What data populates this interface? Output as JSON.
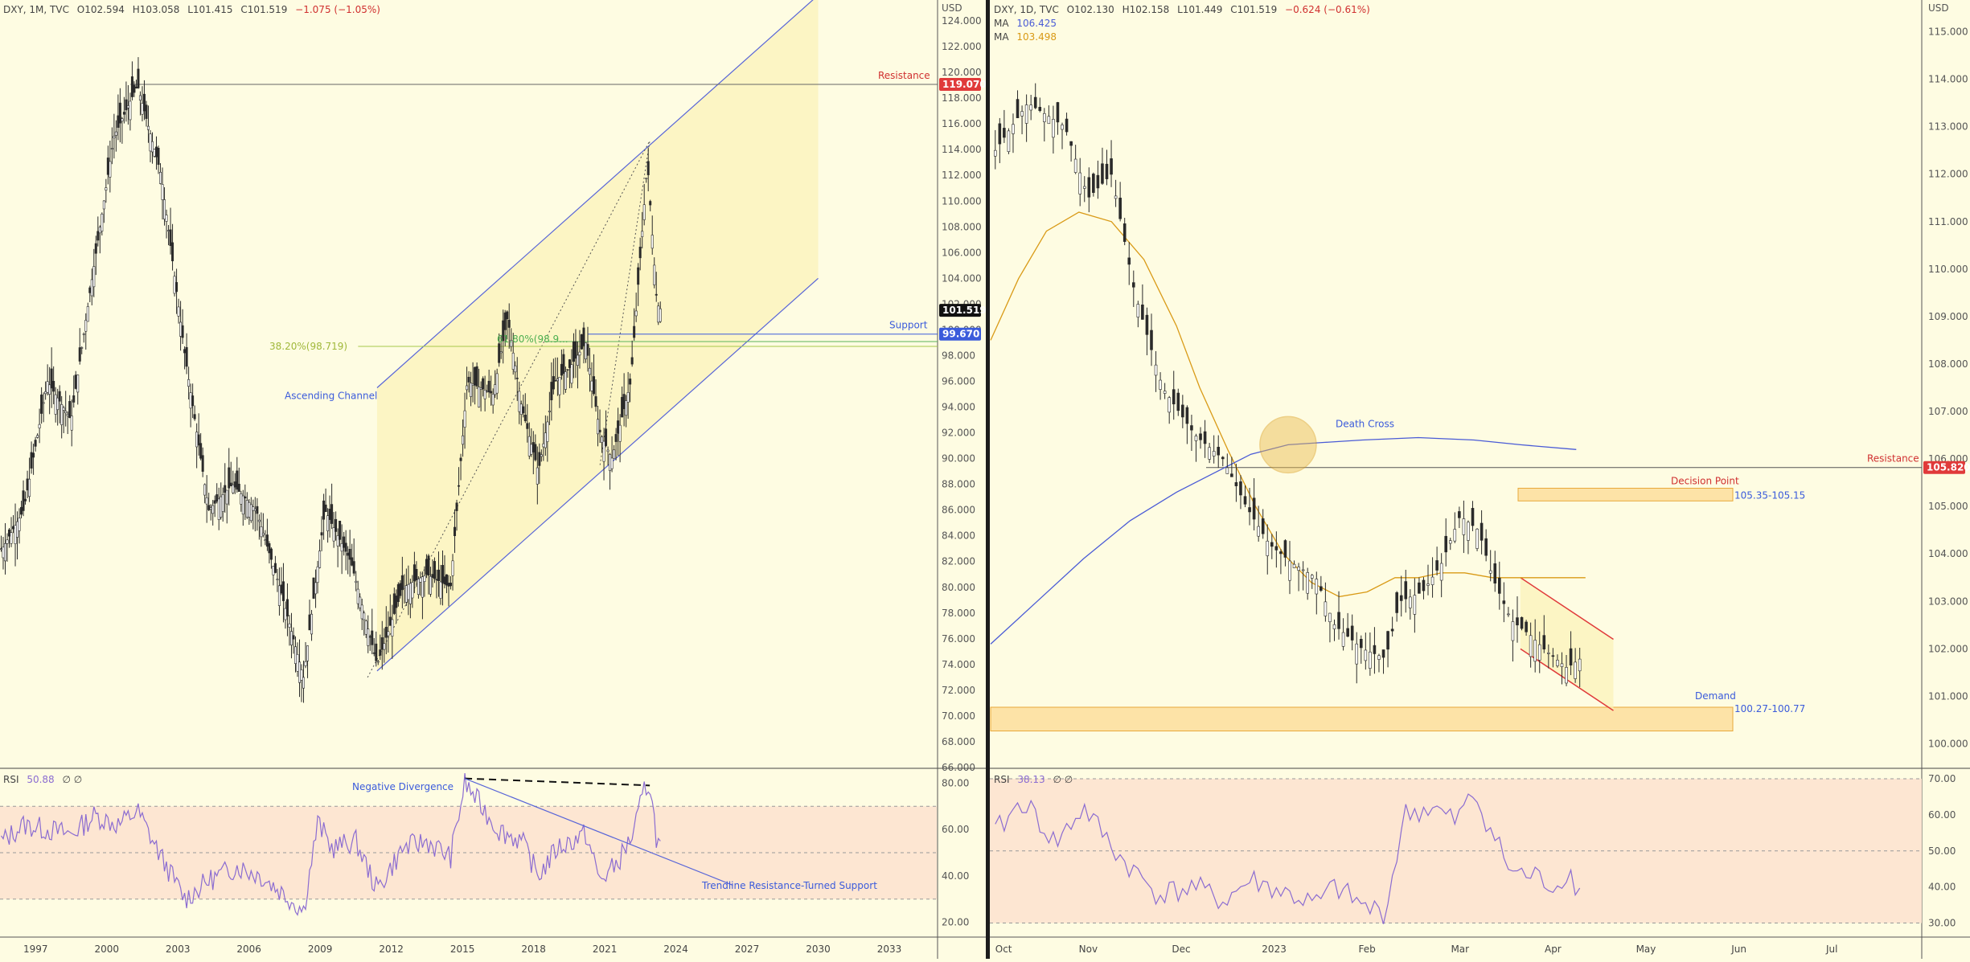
{
  "left": {
    "header": {
      "symbol": "DXY, 1M, TVC",
      "open": "O102.594",
      "high": "H103.058",
      "low": "L101.415",
      "close": "C101.519",
      "change": "−1.075 (−1.05%)"
    },
    "rsi_header": {
      "label": "RSI",
      "value": "50.88",
      "extra": "∅ ∅"
    },
    "currency": "USD",
    "price_labels": [
      "124.000",
      "122.000",
      "120.000",
      "118.000",
      "116.000",
      "114.000",
      "112.000",
      "110.000",
      "108.000",
      "106.000",
      "104.000",
      "102.000",
      "100.000",
      "98.000",
      "96.000",
      "94.000",
      "92.000",
      "90.000",
      "88.000",
      "86.000",
      "84.000",
      "82.000",
      "80.000",
      "78.000",
      "76.000",
      "74.000",
      "72.000",
      "70.000",
      "68.000",
      "66.000"
    ],
    "rsi_labels": [
      "80.00",
      "60.00",
      "40.00",
      "20.00"
    ],
    "time_labels": [
      "1997",
      "2000",
      "2003",
      "2006",
      "2009",
      "2012",
      "2015",
      "2018",
      "2021",
      "2024",
      "2027",
      "2030",
      "2033"
    ],
    "annotations": {
      "resistance": "Resistance",
      "resistance_price": "119.070",
      "support": "Support",
      "support_price": "99.670",
      "last_price": "101.519",
      "fib_left": "38.20%(98.719)",
      "fib_right": "61.80%(98.9...",
      "channel": "Ascending Channel",
      "neg_div": "Negative Divergence",
      "trendline": "Trendline Resistance-Turned Support"
    }
  },
  "right": {
    "header": {
      "symbol": "DXY, 1D, TVC",
      "open": "O102.130",
      "high": "H102.158",
      "low": "L101.449",
      "close": "C101.519",
      "change": "−0.624 (−0.61%)"
    },
    "ma_lines": [
      {
        "label": "MA",
        "value": "106.425",
        "color": "#4a5bd6"
      },
      {
        "label": "MA",
        "value": "103.498",
        "color": "#d99a16"
      }
    ],
    "rsi_header": {
      "label": "RSI",
      "value": "38.13",
      "extra": "∅ ∅"
    },
    "currency": "USD",
    "price_labels": [
      "115.000",
      "114.000",
      "113.000",
      "112.000",
      "111.000",
      "110.000",
      "109.000",
      "108.000",
      "107.000",
      "106.000",
      "105.000",
      "104.000",
      "103.000",
      "102.000",
      "101.000",
      "100.000"
    ],
    "rsi_labels": [
      "70.00",
      "60.00",
      "50.00",
      "40.00",
      "30.00"
    ],
    "time_labels": [
      "Oct",
      "Nov",
      "Dec",
      "2023",
      "Feb",
      "Mar",
      "Apr",
      "May",
      "Jun",
      "Jul"
    ],
    "annotations": {
      "death_cross": "Death Cross",
      "resistance": "Resistance",
      "resistance_price": "105.820",
      "decision_point": "Decision Point",
      "decision_range": "105.35-105.15",
      "demand": "Demand",
      "demand_range": "100.27-100.77"
    }
  },
  "colors": {
    "background": "#fefce2",
    "candle": "#2a2a2a",
    "resistance": "#e03a3a",
    "support": "#3b5bdb",
    "channel": "#5865d8",
    "fib": "#a7c84a",
    "rsi_line": "#8b6cd1",
    "ma_fast": "#d99a16",
    "ma_slow": "#4a5bd6",
    "zone": "#fde3a7",
    "zone_border": "#e8a83b"
  },
  "chart_data": [
    {
      "type": "candlestick",
      "title": "DXY, 1M, TVC",
      "ylabel": "USD",
      "ylim": [
        66,
        125
      ],
      "x_range": [
        1995.5,
        2035
      ],
      "ohlc_latest": {
        "open": 102.594,
        "high": 103.058,
        "low": 101.415,
        "close": 101.519
      },
      "close_path": [
        [
          1995.6,
          83
        ],
        [
          1996.5,
          86
        ],
        [
          1997.5,
          96
        ],
        [
          1998.5,
          93
        ],
        [
          1999.3,
          103
        ],
        [
          2000.3,
          115
        ],
        [
          2001.3,
          119
        ],
        [
          2002.3,
          112
        ],
        [
          2003.3,
          98
        ],
        [
          2004.3,
          86
        ],
        [
          2005.3,
          88
        ],
        [
          2006.3,
          86
        ],
        [
          2007.3,
          80
        ],
        [
          2008.3,
          73
        ],
        [
          2009.2,
          86
        ],
        [
          2010.3,
          82
        ],
        [
          2011.4,
          74
        ],
        [
          2012.5,
          80
        ],
        [
          2013.5,
          81
        ],
        [
          2014.5,
          80
        ],
        [
          2015.2,
          96
        ],
        [
          2016.3,
          95
        ],
        [
          2016.9,
          101
        ],
        [
          2017.5,
          94
        ],
        [
          2018.2,
          89
        ],
        [
          2018.9,
          96
        ],
        [
          2019.5,
          97
        ],
        [
          2020.2,
          99
        ],
        [
          2020.8,
          92
        ],
        [
          2021.3,
          90
        ],
        [
          2022.1,
          96
        ],
        [
          2022.8,
          113
        ],
        [
          2023.2,
          102
        ],
        [
          2023.4,
          101.5
        ]
      ],
      "resistance": 119.07,
      "support": 99.67,
      "fib_levels": [
        {
          "label": "38.20%",
          "value": 98.719
        },
        {
          "label": "61.80%",
          "value": 98.9
        }
      ],
      "channel_lower": [
        [
          2011.4,
          73.5
        ],
        [
          2030.0,
          104.0
        ]
      ],
      "channel_upper": [
        [
          2011.4,
          95.5
        ],
        [
          2030.0,
          126.0
        ]
      ],
      "fib_swing": [
        [
          2011.0,
          73.0
        ],
        [
          2022.9,
          114.7
        ]
      ],
      "fib_swing2": [
        [
          2020.8,
          89.5
        ],
        [
          2022.9,
          114.7
        ]
      ],
      "rsi": {
        "name": "RSI",
        "ylim": [
          15,
          85
        ],
        "levels": [
          70,
          50,
          30
        ],
        "path": [
          [
            1995.6,
            55
          ],
          [
            1996.5,
            62
          ],
          [
            1997.5,
            60
          ],
          [
            1998.5,
            58
          ],
          [
            1999.5,
            66
          ],
          [
            2000.5,
            62
          ],
          [
            2001.3,
            68
          ],
          [
            2002.3,
            48
          ],
          [
            2003.3,
            30
          ],
          [
            2004.3,
            38
          ],
          [
            2005.5,
            44
          ],
          [
            2006.5,
            40
          ],
          [
            2007.5,
            32
          ],
          [
            2008.3,
            25
          ],
          [
            2008.9,
            63
          ],
          [
            2009.5,
            52
          ],
          [
            2010.5,
            55
          ],
          [
            2011.4,
            34
          ],
          [
            2012.5,
            52
          ],
          [
            2013.5,
            55
          ],
          [
            2014.5,
            48
          ],
          [
            2015.1,
            80
          ],
          [
            2015.8,
            70
          ],
          [
            2016.5,
            60
          ],
          [
            2017.5,
            55
          ],
          [
            2018.2,
            40
          ],
          [
            2019.0,
            52
          ],
          [
            2020.2,
            58
          ],
          [
            2020.8,
            38
          ],
          [
            2021.5,
            45
          ],
          [
            2022.2,
            58
          ],
          [
            2022.7,
            78
          ],
          [
            2022.9,
            80
          ],
          [
            2023.2,
            55
          ],
          [
            2023.4,
            51
          ]
        ],
        "neg_div": [
          [
            2015.1,
            82
          ],
          [
            2022.9,
            79
          ]
        ],
        "trendline": [
          [
            2015.1,
            82
          ],
          [
            2026.4,
            36
          ]
        ]
      }
    },
    {
      "type": "candlestick",
      "title": "DXY, 1D, TVC",
      "ylabel": "USD",
      "ylim": [
        99.5,
        115.5
      ],
      "x_range": [
        0,
        10.0
      ],
      "x_ticks": [
        "Oct",
        "Nov",
        "Dec",
        "2023",
        "Feb",
        "Mar",
        "Apr",
        "May",
        "Jun",
        "Jul"
      ],
      "ohlc_latest": {
        "open": 102.13,
        "high": 102.158,
        "low": 101.449,
        "close": 101.519
      },
      "close_path": [
        [
          0.05,
          112.5
        ],
        [
          0.4,
          113.5
        ],
        [
          0.8,
          113.0
        ],
        [
          1.05,
          111.5
        ],
        [
          1.3,
          112.0
        ],
        [
          1.55,
          109.5
        ],
        [
          1.85,
          107.5
        ],
        [
          2.2,
          106.5
        ],
        [
          2.5,
          106.0
        ],
        [
          2.75,
          105.0
        ],
        [
          3.0,
          104.2
        ],
        [
          3.25,
          103.8
        ],
        [
          3.5,
          103.5
        ],
        [
          3.7,
          102.5
        ],
        [
          4.0,
          102.0
        ],
        [
          4.25,
          101.8
        ],
        [
          4.4,
          103.0
        ],
        [
          4.65,
          103.2
        ],
        [
          4.85,
          103.8
        ],
        [
          5.05,
          104.8
        ],
        [
          5.25,
          104.5
        ],
        [
          5.4,
          103.5
        ],
        [
          5.6,
          102.6
        ],
        [
          5.8,
          102.3
        ],
        [
          5.95,
          102.0
        ],
        [
          6.2,
          101.6
        ],
        [
          6.35,
          101.8
        ]
      ],
      "ma_fast": [
        [
          0.0,
          108.5
        ],
        [
          0.3,
          109.8
        ],
        [
          0.6,
          110.8
        ],
        [
          0.95,
          111.2
        ],
        [
          1.3,
          111.0
        ],
        [
          1.65,
          110.2
        ],
        [
          2.0,
          108.8
        ],
        [
          2.25,
          107.5
        ],
        [
          2.55,
          106.2
        ],
        [
          2.85,
          105.0
        ],
        [
          3.15,
          104.0
        ],
        [
          3.45,
          103.4
        ],
        [
          3.75,
          103.1
        ],
        [
          4.05,
          103.2
        ],
        [
          4.35,
          103.5
        ],
        [
          4.6,
          103.5
        ],
        [
          4.85,
          103.6
        ],
        [
          5.1,
          103.6
        ],
        [
          5.4,
          103.5
        ],
        [
          5.7,
          103.5
        ],
        [
          6.0,
          103.5
        ],
        [
          6.4,
          103.5
        ]
      ],
      "ma_slow": [
        [
          0.0,
          102.1
        ],
        [
          0.5,
          103.0
        ],
        [
          1.0,
          103.9
        ],
        [
          1.5,
          104.7
        ],
        [
          2.0,
          105.3
        ],
        [
          2.4,
          105.7
        ],
        [
          2.8,
          106.1
        ],
        [
          3.2,
          106.3
        ],
        [
          3.6,
          106.35
        ],
        [
          4.0,
          106.4
        ],
        [
          4.6,
          106.45
        ],
        [
          5.2,
          106.4
        ],
        [
          5.7,
          106.3
        ],
        [
          6.3,
          106.2
        ]
      ],
      "death_cross": {
        "x": 3.2,
        "y": 106.3
      },
      "resistance": 105.82,
      "decision_zone": [
        105.15,
        105.35
      ],
      "demand_zone": [
        100.27,
        100.77
      ],
      "channel_upper": [
        [
          5.7,
          103.5
        ],
        [
          6.7,
          102.2
        ]
      ],
      "channel_lower": [
        [
          5.7,
          102.0
        ],
        [
          6.7,
          100.7
        ]
      ],
      "rsi": {
        "name": "RSI",
        "ylim": [
          27,
          72
        ],
        "levels": [
          70,
          50,
          30
        ],
        "path": [
          [
            0.05,
            55
          ],
          [
            0.35,
            64
          ],
          [
            0.7,
            52
          ],
          [
            1.0,
            62
          ],
          [
            1.4,
            48
          ],
          [
            1.8,
            38
          ],
          [
            2.2,
            40
          ],
          [
            2.5,
            36
          ],
          [
            2.8,
            42
          ],
          [
            3.2,
            38
          ],
          [
            3.5,
            35
          ],
          [
            3.7,
            40
          ],
          [
            4.05,
            34
          ],
          [
            4.25,
            33
          ],
          [
            4.45,
            60
          ],
          [
            4.75,
            62
          ],
          [
            5.0,
            58
          ],
          [
            5.2,
            66
          ],
          [
            5.4,
            55
          ],
          [
            5.6,
            44
          ],
          [
            5.85,
            43
          ],
          [
            6.1,
            40
          ],
          [
            6.2,
            45
          ],
          [
            6.35,
            38
          ]
        ]
      }
    }
  ]
}
